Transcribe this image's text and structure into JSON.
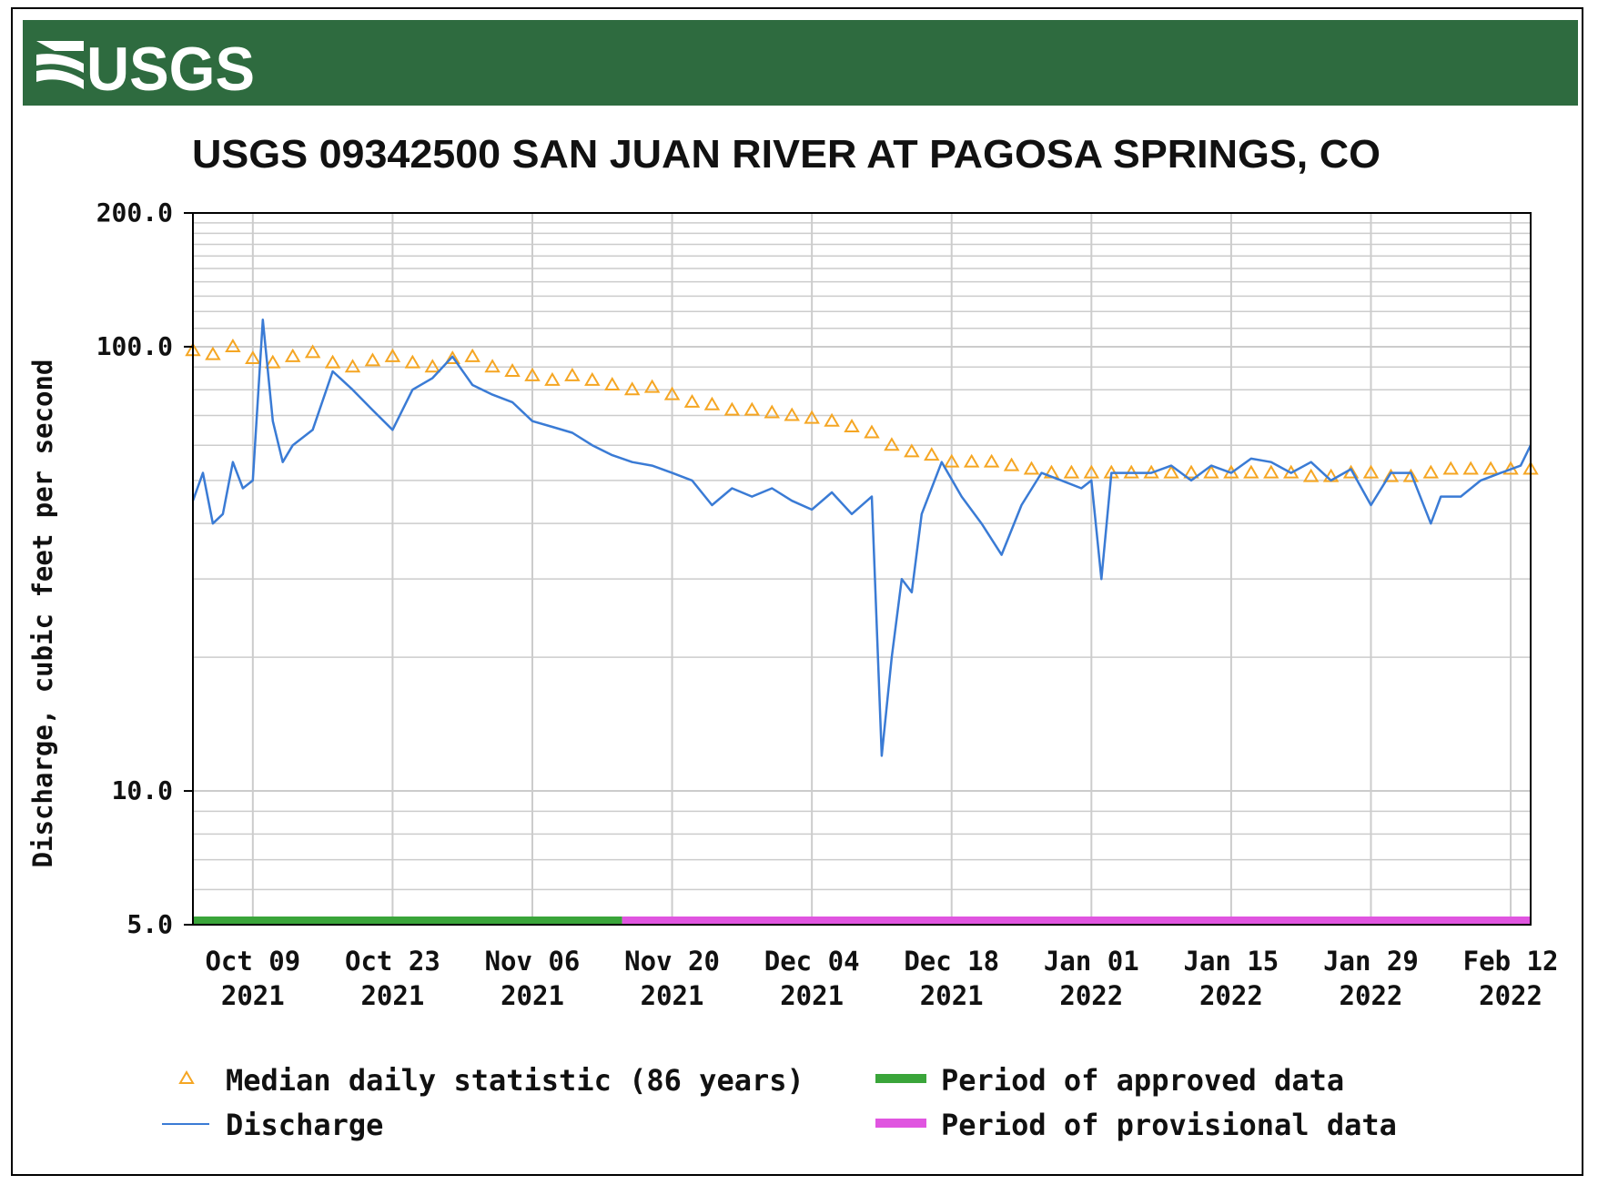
{
  "header": {
    "logo_text": "USGS",
    "bar_color": "#2e6b3f"
  },
  "chart_data": {
    "type": "line",
    "title": "USGS 09342500 SAN JUAN RIVER AT PAGOSA SPRINGS, CO",
    "ylabel": "Discharge, cubic feet per second",
    "xlabel": "",
    "y_scale": "log",
    "ylim": [
      5.0,
      200.0
    ],
    "y_ticks": [
      "200.0",
      "100.0",
      "10.0",
      "5.0"
    ],
    "y_tick_values": [
      200,
      100,
      10,
      5
    ],
    "xlim": [
      "2021-10-03",
      "2022-02-14"
    ],
    "x_ticks": [
      {
        "date": "2021-10-09",
        "line1": "Oct 09",
        "line2": "2021"
      },
      {
        "date": "2021-10-23",
        "line1": "Oct 23",
        "line2": "2021"
      },
      {
        "date": "2021-11-06",
        "line1": "Nov 06",
        "line2": "2021"
      },
      {
        "date": "2021-11-20",
        "line1": "Nov 20",
        "line2": "2021"
      },
      {
        "date": "2021-12-04",
        "line1": "Dec 04",
        "line2": "2021"
      },
      {
        "date": "2021-12-18",
        "line1": "Dec 18",
        "line2": "2021"
      },
      {
        "date": "2022-01-01",
        "line1": "Jan 01",
        "line2": "2022"
      },
      {
        "date": "2022-01-15",
        "line1": "Jan 15",
        "line2": "2022"
      },
      {
        "date": "2022-01-29",
        "line1": "Jan 29",
        "line2": "2022"
      },
      {
        "date": "2022-02-12",
        "line1": "Feb 12",
        "line2": "2022"
      }
    ],
    "grid": true,
    "series": [
      {
        "name": "Discharge",
        "color": "#3a7bd5",
        "style": "line",
        "x": [
          "2021-10-03",
          "2021-10-04",
          "2021-10-05",
          "2021-10-06",
          "2021-10-07",
          "2021-10-08",
          "2021-10-09",
          "2021-10-10",
          "2021-10-11",
          "2021-10-12",
          "2021-10-13",
          "2021-10-15",
          "2021-10-17",
          "2021-10-19",
          "2021-10-21",
          "2021-10-23",
          "2021-10-25",
          "2021-10-27",
          "2021-10-29",
          "2021-10-31",
          "2021-11-02",
          "2021-11-04",
          "2021-11-06",
          "2021-11-08",
          "2021-11-10",
          "2021-11-12",
          "2021-11-14",
          "2021-11-16",
          "2021-11-18",
          "2021-11-20",
          "2021-11-22",
          "2021-11-24",
          "2021-11-26",
          "2021-11-28",
          "2021-11-30",
          "2021-12-02",
          "2021-12-04",
          "2021-12-06",
          "2021-12-08",
          "2021-12-10",
          "2021-12-11",
          "2021-12-12",
          "2021-12-13",
          "2021-12-14",
          "2021-12-15",
          "2021-12-17",
          "2021-12-19",
          "2021-12-21",
          "2021-12-23",
          "2021-12-25",
          "2021-12-27",
          "2021-12-29",
          "2021-12-31",
          "2022-01-01",
          "2022-01-02",
          "2022-01-03",
          "2022-01-05",
          "2022-01-07",
          "2022-01-09",
          "2022-01-11",
          "2022-01-13",
          "2022-01-15",
          "2022-01-17",
          "2022-01-19",
          "2022-01-21",
          "2022-01-23",
          "2022-01-25",
          "2022-01-27",
          "2022-01-29",
          "2022-01-31",
          "2022-02-02",
          "2022-02-04",
          "2022-02-05",
          "2022-02-07",
          "2022-02-09",
          "2022-02-11",
          "2022-02-13",
          "2022-02-14"
        ],
        "values": [
          45,
          52,
          40,
          42,
          55,
          48,
          50,
          115,
          68,
          55,
          60,
          65,
          88,
          80,
          72,
          65,
          80,
          85,
          95,
          82,
          78,
          75,
          68,
          66,
          64,
          60,
          57,
          55,
          54,
          52,
          50,
          44,
          48,
          46,
          48,
          45,
          43,
          47,
          42,
          46,
          12,
          20,
          30,
          28,
          42,
          55,
          46,
          40,
          34,
          44,
          52,
          50,
          48,
          50,
          30,
          52,
          52,
          52,
          54,
          50,
          54,
          52,
          56,
          55,
          52,
          55,
          50,
          53,
          44,
          52,
          52,
          40,
          46,
          46,
          50,
          52,
          54,
          60
        ]
      },
      {
        "name": "Median daily statistic (86 years)",
        "color": "#f5a623",
        "style": "triangle",
        "x": [
          "2021-10-03",
          "2021-10-05",
          "2021-10-07",
          "2021-10-09",
          "2021-10-11",
          "2021-10-13",
          "2021-10-15",
          "2021-10-17",
          "2021-10-19",
          "2021-10-21",
          "2021-10-23",
          "2021-10-25",
          "2021-10-27",
          "2021-10-29",
          "2021-10-31",
          "2021-11-02",
          "2021-11-04",
          "2021-11-06",
          "2021-11-08",
          "2021-11-10",
          "2021-11-12",
          "2021-11-14",
          "2021-11-16",
          "2021-11-18",
          "2021-11-20",
          "2021-11-22",
          "2021-11-24",
          "2021-11-26",
          "2021-11-28",
          "2021-11-30",
          "2021-12-02",
          "2021-12-04",
          "2021-12-06",
          "2021-12-08",
          "2021-12-10",
          "2021-12-12",
          "2021-12-14",
          "2021-12-16",
          "2021-12-18",
          "2021-12-20",
          "2021-12-22",
          "2021-12-24",
          "2021-12-26",
          "2021-12-28",
          "2021-12-30",
          "2022-01-01",
          "2022-01-03",
          "2022-01-05",
          "2022-01-07",
          "2022-01-09",
          "2022-01-11",
          "2022-01-13",
          "2022-01-15",
          "2022-01-17",
          "2022-01-19",
          "2022-01-21",
          "2022-01-23",
          "2022-01-25",
          "2022-01-27",
          "2022-01-29",
          "2022-01-31",
          "2022-02-02",
          "2022-02-04",
          "2022-02-06",
          "2022-02-08",
          "2022-02-10",
          "2022-02-12",
          "2022-02-14"
        ],
        "values": [
          98,
          96,
          100,
          94,
          92,
          95,
          97,
          92,
          90,
          93,
          95,
          92,
          90,
          94,
          95,
          90,
          88,
          86,
          84,
          86,
          84,
          82,
          80,
          81,
          78,
          75,
          74,
          72,
          72,
          71,
          70,
          69,
          68,
          66,
          64,
          60,
          58,
          57,
          55,
          55,
          55,
          54,
          53,
          52,
          52,
          52,
          52,
          52,
          52,
          52,
          52,
          52,
          52,
          52,
          52,
          52,
          51,
          51,
          52,
          52,
          51,
          51,
          52,
          53,
          53,
          53,
          53,
          53
        ]
      }
    ],
    "periods": [
      {
        "name": "Period of approved data",
        "color": "#3aa53a",
        "start": "2021-10-03",
        "end": "2021-11-15"
      },
      {
        "name": "Period of provisional data",
        "color": "#e055e0",
        "start": "2021-11-15",
        "end": "2022-02-14"
      }
    ],
    "legend": {
      "placement": "bottom",
      "items": [
        {
          "label": "Median daily statistic (86 years)",
          "symbol": "triangle",
          "color": "#f5a623"
        },
        {
          "label": "Period of approved data",
          "symbol": "bar",
          "color": "#3aa53a"
        },
        {
          "label": "Discharge",
          "symbol": "line",
          "color": "#3a7bd5"
        },
        {
          "label": "Period of provisional data",
          "symbol": "bar",
          "color": "#e055e0"
        }
      ]
    }
  }
}
